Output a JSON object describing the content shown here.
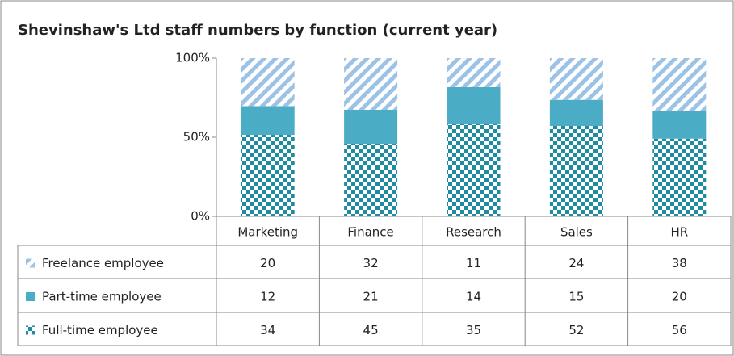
{
  "chart_data": {
    "type": "bar",
    "stacked_percent": true,
    "title": "Shevinshaw's Ltd staff numbers by function (current year)",
    "categories": [
      "Marketing",
      "Finance",
      "Research",
      "Sales",
      "HR"
    ],
    "series": [
      {
        "name": "Freelance employee",
        "color": "#9cc3e5",
        "pattern": "stripes",
        "values": [
          20,
          32,
          11,
          24,
          38
        ]
      },
      {
        "name": "Part-time employee",
        "color": "#4bacc6",
        "pattern": "solid",
        "values": [
          12,
          21,
          14,
          15,
          20
        ]
      },
      {
        "name": "Full-time employee",
        "color": "#1f8ba0",
        "pattern": "checker",
        "values": [
          34,
          45,
          35,
          52,
          56
        ]
      }
    ],
    "ylim": [
      0,
      100
    ],
    "yticks": [
      {
        "value": 0,
        "label": "0%"
      },
      {
        "value": 50,
        "label": "50%"
      },
      {
        "value": 100,
        "label": "100%"
      }
    ],
    "grid": false,
    "data_table": true
  }
}
